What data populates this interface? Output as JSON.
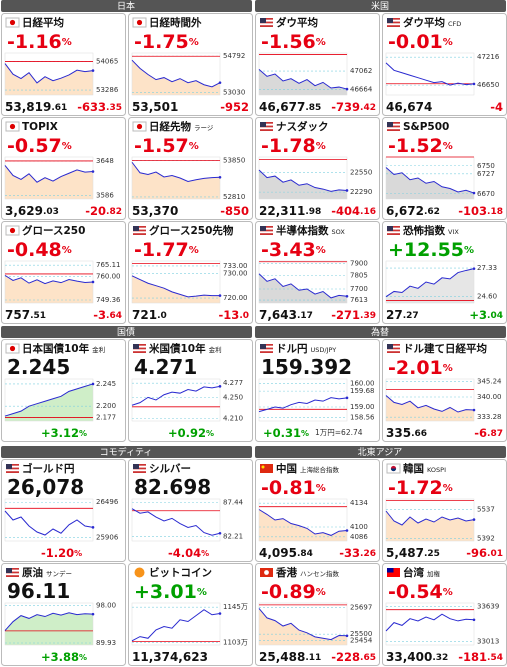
{
  "sections": [
    {
      "title": "日本",
      "tiles": [
        {
          "kind": "index",
          "flag": "jp",
          "title": "日経平均",
          "pct": "-1.16%",
          "price": "53,819.61",
          "chg": "-633.35",
          "color": "#e60012",
          "fill": "#fde3c8",
          "ylim": [
            53150,
            54300
          ],
          "yticks": [
            54065,
            53286
          ],
          "base": 54065,
          "line": [
            54010,
            53720,
            53600,
            53760,
            53480,
            53650,
            53540,
            53610,
            53700,
            53830,
            53790,
            53819
          ]
        },
        {
          "kind": "index",
          "flag": "jp",
          "title": "日経時間外",
          "pct": "-1.75%",
          "price": "53,501",
          "chg": "-952",
          "color": "#e60012",
          "fill": "#fde3c8",
          "ylim": [
            52900,
            54950
          ],
          "yticks": [
            54792,
            53030
          ],
          "base": 54792,
          "line": [
            54600,
            54200,
            53900,
            53650,
            53750,
            53550,
            53700,
            53500,
            53600,
            53400,
            53300,
            53501
          ]
        },
        {
          "kind": "index",
          "flag": "jp",
          "title": "TOPIX",
          "pct": "-0.57%",
          "price": "3,629.03",
          "chg": "-20.82",
          "color": "#e60012",
          "fill": "#fde3c8",
          "ylim": [
            3580,
            3655
          ],
          "yticks": [
            3648,
            3586
          ],
          "base": 3648,
          "line": [
            3640,
            3622,
            3615,
            3625,
            3610,
            3618,
            3612,
            3620,
            3626,
            3632,
            3628,
            3629
          ]
        },
        {
          "kind": "index",
          "flag": "jp",
          "title": "日経先物",
          "sub": "ラージ",
          "pct": "-1.57%",
          "price": "53,370",
          "chg": "-850",
          "color": "#e60012",
          "fill": "#fde3c8",
          "ylim": [
            52750,
            53950
          ],
          "yticks": [
            53850,
            52810
          ],
          "base": 53850,
          "line": [
            53800,
            53500,
            53450,
            53520,
            53380,
            53420,
            53350,
            53250,
            53300,
            53340,
            53360,
            53370
          ]
        },
        {
          "kind": "index",
          "flag": "jp",
          "title": "グロース250",
          "pct": "-0.48%",
          "price": "757.51",
          "chg": "-3.64",
          "color": "#e60012",
          "fill": "#fde3c8",
          "ylim": [
            748,
            767
          ],
          "yticks": [
            {
              "value": 765.11,
              "label": "765.11"
            },
            {
              "value": 760,
              "label": "760.00"
            },
            {
              "value": 749.36,
              "label": "749.36"
            }
          ],
          "base": 761.15,
          "line": [
            760.5,
            758.2,
            759.4,
            757.0,
            758.5,
            756.8,
            758.0,
            757.2,
            758.6,
            757.9,
            757.3,
            757.51
          ]
        },
        {
          "kind": "index",
          "flag": "us",
          "title": "グロース250先物",
          "pct": "-1.77%",
          "price": "721.0",
          "chg": "-13.0",
          "color": "#e60012",
          "fill": "#fde3c8",
          "ylim": [
            718,
            735
          ],
          "yticks": [
            {
              "value": 733,
              "label": "733.00"
            },
            {
              "value": 730,
              "label": "730.00"
            },
            {
              "value": 720,
              "label": "720.00"
            }
          ],
          "base": 734,
          "line": [
            729,
            727.5,
            726,
            725,
            724,
            722.5,
            721.5,
            720.5,
            720.8,
            721.2,
            721.0,
            721.0
          ]
        }
      ]
    },
    {
      "title": "米国",
      "tiles": [
        {
          "kind": "index",
          "flag": "us",
          "title": "ダウ平均",
          "pct": "-1.56%",
          "price": "46,677.85",
          "chg": "-739.42",
          "color": "#e60012",
          "fill": "#d9d9d9",
          "ylim": [
            46550,
            47450
          ],
          "yticks": [
            47062,
            46664
          ],
          "base": 47417,
          "line": [
            47100,
            46950,
            47000,
            46850,
            46900,
            46800,
            46880,
            46750,
            46820,
            46700,
            46720,
            46677
          ]
        },
        {
          "kind": "index",
          "flag": "us",
          "title": "ダウ平均",
          "sub": "CFD",
          "pct": "-0.01%",
          "price": "46,674",
          "chg": "-4",
          "color": "#e60012",
          "fill": "#ffffff",
          "ylim": [
            46450,
            47300
          ],
          "yticks": [
            47216,
            46650
          ],
          "base": 46678,
          "line": [
            47100,
            46950,
            46900,
            46850,
            46800,
            46750,
            46700,
            46720,
            46650,
            46690,
            46660,
            46674
          ]
        },
        {
          "kind": "index",
          "flag": "us",
          "title": "ナスダック",
          "pct": "-1.78%",
          "price": "22,311.98",
          "chg": "-404.16",
          "color": "#e60012",
          "fill": "#d9d9d9",
          "ylim": [
            22200,
            22750
          ],
          "yticks": [
            22550,
            22290
          ],
          "base": 22716,
          "line": [
            22580,
            22480,
            22500,
            22420,
            22450,
            22380,
            22400,
            22350,
            22330,
            22300,
            22320,
            22312
          ]
        },
        {
          "kind": "index",
          "flag": "us",
          "title": "S&P500",
          "pct": "-1.52%",
          "price": "6,672.62",
          "chg": "-103.18",
          "color": "#e60012",
          "fill": "#d9d9d9",
          "ylim": [
            6655,
            6775
          ],
          "yticks": [
            6750,
            6727,
            6670
          ],
          "base": 6775,
          "line": [
            6745,
            6725,
            6730,
            6710,
            6715,
            6700,
            6705,
            6690,
            6685,
            6675,
            6680,
            6672
          ]
        },
        {
          "kind": "index",
          "flag": "us",
          "title": "半導体指数",
          "sub": "SOX",
          "pct": "-3.43%",
          "price": "7,643.17",
          "chg": "-271.39",
          "color": "#e60012",
          "fill": "#d9d9d9",
          "ylim": [
            7590,
            7920
          ],
          "yticks": [
            7900,
            7805,
            7700,
            7613
          ],
          "base": 7914,
          "line": [
            7820,
            7760,
            7780,
            7720,
            7740,
            7690,
            7700,
            7660,
            7680,
            7630,
            7650,
            7643
          ]
        },
        {
          "kind": "index",
          "flag": "us",
          "title": "恐怖指数",
          "sub": "VIX",
          "pct": "+12.55%",
          "price": "27.27",
          "chg": "+3.04",
          "color": "#00a000",
          "fill": "#e6e6e6",
          "ylim": [
            24,
            28
          ],
          "yticks": [
            {
              "value": 27.33,
              "label": "27.33"
            },
            {
              "value": 24.6,
              "label": "24.60"
            }
          ],
          "base": 24.23,
          "line": [
            24.6,
            25.1,
            25.0,
            25.6,
            25.4,
            26.0,
            25.8,
            26.4,
            26.3,
            26.9,
            27.1,
            27.27
          ]
        }
      ]
    },
    {
      "title": "国債",
      "tiles": [
        {
          "kind": "quote",
          "flag": "jp",
          "title": "日本国債10年",
          "sub": "金利",
          "value": "2.245",
          "pct": "+3.12%",
          "color": "#00a000",
          "fill": "#cfeec8",
          "ylim": [
            2.17,
            2.255
          ],
          "yticks": [
            {
              "value": 2.245,
              "label": "2.245"
            },
            {
              "value": 2.2,
              "label": "2.200"
            },
            {
              "value": 2.177,
              "label": "2.177"
            }
          ],
          "base": 2.177,
          "line": [
            2.18,
            2.185,
            2.19,
            2.2,
            2.205,
            2.21,
            2.215,
            2.22,
            2.23,
            2.235,
            2.24,
            2.245
          ]
        },
        {
          "kind": "quote",
          "flag": "us",
          "title": "米国債10年",
          "sub": "金利",
          "value": "4.271",
          "pct": "+0.92%",
          "color": "#00a000",
          "fill": "#ffffff",
          "ylim": [
            4.205,
            4.285
          ],
          "yticks": [
            {
              "value": 4.277,
              "label": "4.277"
            },
            {
              "value": 4.25,
              "label": "4.250"
            },
            {
              "value": 4.21,
              "label": "4.210"
            }
          ],
          "base": 4.232,
          "line": [
            4.235,
            4.24,
            4.25,
            4.245,
            4.255,
            4.26,
            4.258,
            4.265,
            4.262,
            4.27,
            4.268,
            4.271
          ]
        }
      ]
    },
    {
      "title": "為替",
      "tiles": [
        {
          "kind": "quote",
          "flag": "us",
          "title": "ドル円",
          "sub": "USD/JPY",
          "value": "159.392",
          "pct": "+0.31%",
          "note": "1万円=62.74",
          "color": "#00a000",
          "fill": "#ffffff",
          "ylim": [
            158.4,
            160.2
          ],
          "yticks": [
            {
              "value": 160,
              "label": "160.00"
            },
            {
              "value": 159.68,
              "label": "159.68"
            },
            {
              "value": 159,
              "label": "159.00"
            },
            {
              "value": 158.56,
              "label": "158.56"
            }
          ],
          "base": 158.9,
          "line": [
            158.8,
            158.9,
            159.0,
            158.95,
            159.1,
            159.2,
            159.15,
            159.3,
            159.25,
            159.4,
            159.35,
            159.392
          ]
        },
        {
          "kind": "index",
          "flag": "us",
          "title": "ドル建て日経平均",
          "pct": "-2.01%",
          "price": "335.66",
          "chg": "-6.87",
          "color": "#e60012",
          "fill": "#fde3c8",
          "ylim": [
            332,
            346
          ],
          "yticks": [
            {
              "value": 345.24,
              "label": "345.24"
            },
            {
              "value": 340,
              "label": "340.00"
            },
            {
              "value": 333.28,
              "label": "333.28"
            }
          ],
          "base": 342.53,
          "line": [
            340.5,
            338.2,
            337.5,
            338.6,
            336.4,
            337.2,
            336.0,
            335.2,
            336.5,
            335.0,
            335.8,
            335.66
          ]
        }
      ]
    },
    {
      "title": "コモディティ",
      "tiles": [
        {
          "kind": "quote",
          "flag": "us",
          "title": "ゴールド円",
          "value": "26,078",
          "pct": "-1.20%",
          "color": "#e60012",
          "fill": "#ffffff",
          "ylim": [
            25850,
            26550
          ],
          "yticks": [
            26496,
            25906
          ],
          "base": 26395,
          "line": [
            26350,
            26200,
            26250,
            26100,
            26000,
            25950,
            26050,
            25980,
            26120,
            26200,
            26100,
            26078
          ]
        },
        {
          "kind": "quote",
          "flag": "us",
          "title": "シルバー",
          "value": "82.698",
          "pct": "-4.04%",
          "color": "#e60012",
          "fill": "#ffffff",
          "ylim": [
            81.5,
            88
          ],
          "yticks": [
            {
              "value": 87.44,
              "label": "87.44"
            },
            {
              "value": 82.21,
              "label": "82.21"
            }
          ],
          "base": 86.18,
          "line": [
            86.5,
            85.8,
            86.0,
            85.2,
            84.6,
            85.0,
            84.2,
            83.6,
            83.9,
            82.8,
            82.4,
            82.698
          ]
        },
        {
          "kind": "quote",
          "flag": "us",
          "title": "原油",
          "sub": "サンデー",
          "value": "96.11",
          "pct": "+3.88%",
          "color": "#00a000",
          "fill": "#cfeec8",
          "ylim": [
            89.5,
            98.5
          ],
          "yticks": [
            {
              "value": 98,
              "label": "98.00"
            },
            {
              "value": 89.93,
              "label": "89.93"
            }
          ],
          "base": 92.52,
          "line": [
            92.6,
            94.5,
            95.8,
            95.2,
            96.0,
            95.6,
            96.3,
            95.9,
            96.4,
            96.0,
            96.2,
            96.11
          ]
        },
        {
          "kind": "index",
          "flag": "btc",
          "title": "ビットコイン",
          "pct": "+3.01%",
          "price": "11,374,623",
          "color": "#00a000",
          "fill": "#ffffff",
          "ylim": [
            11000000,
            11500000
          ],
          "yticks": [
            {
              "value": 11450000,
              "label": "1145万"
            },
            {
              "value": 11030000,
              "label": "1103万"
            }
          ],
          "base": 11042000,
          "line": [
            11050000,
            11100000,
            11080000,
            11180000,
            11220000,
            11200000,
            11300000,
            11280000,
            11350000,
            11420000,
            11360000,
            11374623
          ]
        }
      ]
    },
    {
      "title": "北東アジア",
      "tiles": [
        {
          "kind": "index",
          "flag": "cn",
          "title": "中国",
          "sub": "上海総合指数",
          "pct": "-0.81%",
          "price": "4,095.84",
          "chg": "-33.26",
          "color": "#e60012",
          "fill": "#fde3c8",
          "ylim": [
            4080,
            4140
          ],
          "yticks": [
            4134,
            4100,
            4086
          ],
          "base": 4129,
          "line": [
            4125,
            4118,
            4110,
            4112,
            4105,
            4102,
            4098,
            4090,
            4092,
            4088,
            4094,
            4095
          ]
        },
        {
          "kind": "index",
          "flag": "kr",
          "title": "韓国",
          "sub": "KOSPI",
          "pct": "-1.72%",
          "price": "5,487.25",
          "chg": "-96.01",
          "color": "#e60012",
          "fill": "#fde3c8",
          "ylim": [
            5380,
            5590
          ],
          "yticks": [
            5537,
            5392
          ],
          "base": 5583,
          "line": [
            5530,
            5480,
            5460,
            5500,
            5470,
            5490,
            5475,
            5500,
            5485,
            5495,
            5480,
            5487
          ]
        },
        {
          "kind": "index",
          "flag": "hk",
          "title": "香港",
          "sub": "ハンセン指数",
          "pct": "-0.89%",
          "price": "25,488.11",
          "chg": "-228.65",
          "color": "#e60012",
          "fill": "#fde3c8",
          "ylim": [
            25420,
            25730
          ],
          "yticks": [
            25697,
            25500,
            25454
          ],
          "base": 25716,
          "line": [
            25690,
            25620,
            25600,
            25560,
            25580,
            25530,
            25510,
            25480,
            25470,
            25460,
            25490,
            25488
          ]
        },
        {
          "kind": "index",
          "flag": "tw",
          "title": "台湾",
          "sub": "加権",
          "pct": "-0.54%",
          "price": "33,400.32",
          "chg": "-181.54",
          "color": "#e60012",
          "fill": "#ffffff",
          "ylim": [
            32950,
            33700
          ],
          "yticks": [
            33639,
            33013
          ],
          "base": 33581,
          "line": [
            33200,
            33350,
            33300,
            33420,
            33380,
            33450,
            33400,
            33500,
            33420,
            33380,
            33410,
            33400
          ]
        }
      ]
    }
  ]
}
